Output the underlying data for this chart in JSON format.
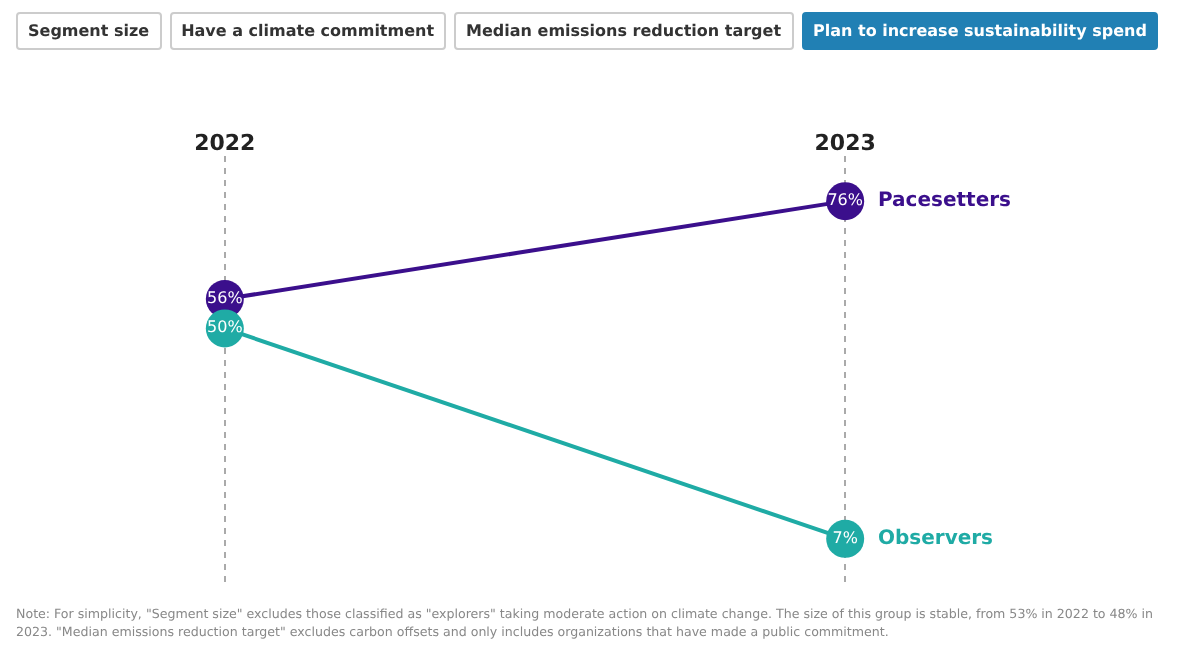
{
  "chart_data": {
    "type": "line",
    "title": "Plan to increase sustainability spend",
    "categories": [
      "2022",
      "2023"
    ],
    "series": [
      {
        "name": "Pacesetters",
        "color": "#3b0f8c",
        "values": [
          56,
          76
        ],
        "value_labels": [
          "56%",
          "76%"
        ]
      },
      {
        "name": "Observers",
        "color": "#1faba5",
        "values": [
          50,
          7
        ],
        "value_labels": [
          "50%",
          "7%"
        ]
      }
    ],
    "annotations": [
      "Segment size",
      "Have a climate commitment",
      "Median emissions reduction target",
      "Note: For simplicity, \"Segment size\" excludes those classified as \"explorers\" taking moderate action on climate change. The size of this group is stable, from 53% in 2022 to 48% in 2023. \"Median emissions reduction target\" excludes carbon offsets and only includes organizations that have made a public commitment."
    ],
    "grid": "x",
    "legend": false,
    "marker": "circle",
    "line_style": "solid"
  }
}
